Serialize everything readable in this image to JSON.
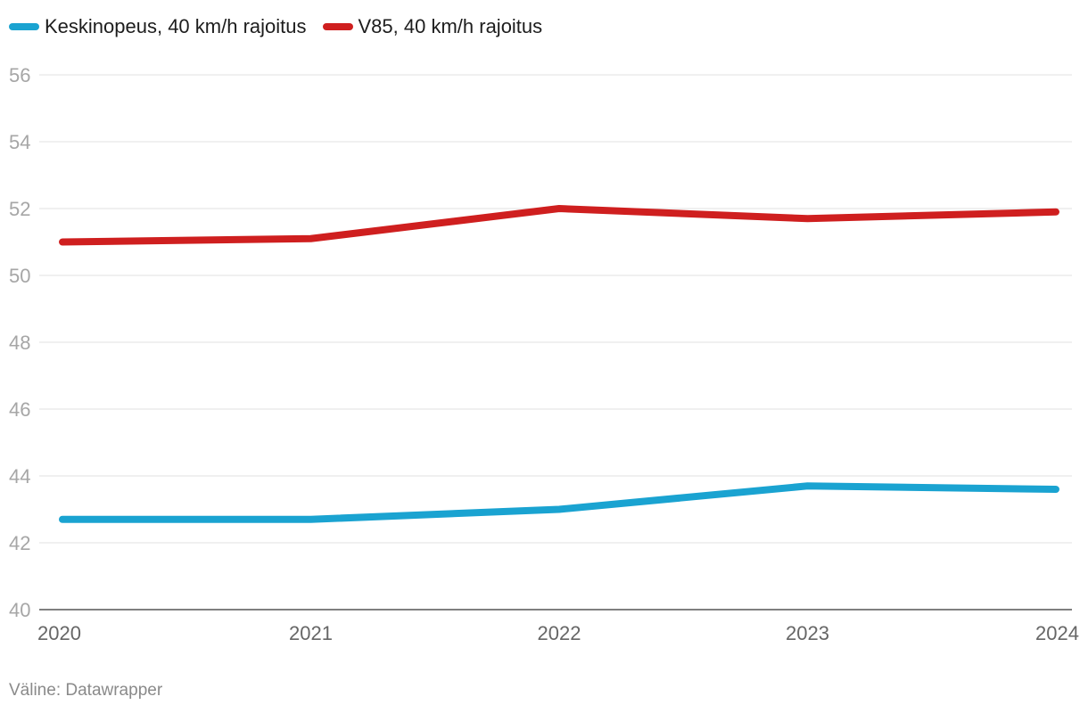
{
  "chart_data": {
    "type": "line",
    "title": "",
    "xlabel": "",
    "ylabel": "",
    "categories": [
      "2020",
      "2021",
      "2022",
      "2023",
      "2024"
    ],
    "ylim": [
      40,
      56
    ],
    "yticks": [
      "40",
      "42",
      "44",
      "46",
      "48",
      "50",
      "52",
      "54",
      "56"
    ],
    "grid": true,
    "legend_position": "top-left",
    "series": [
      {
        "name": "Keskinopeus, 40 km/h rajoitus",
        "color": "#1aa3d1",
        "values": [
          42.7,
          42.7,
          43.0,
          43.7,
          43.6
        ]
      },
      {
        "name": "V85, 40 km/h rajoitus",
        "color": "#cf1f1f",
        "values": [
          51.0,
          51.1,
          52.0,
          51.7,
          51.9
        ]
      }
    ]
  },
  "source": "Väline: Datawrapper"
}
